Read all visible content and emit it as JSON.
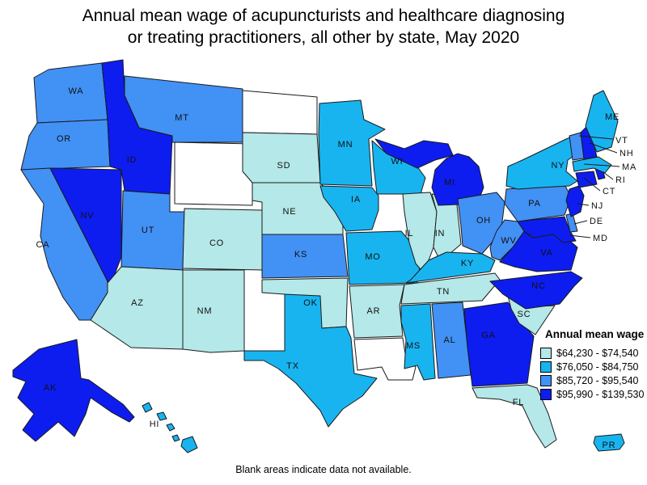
{
  "page": {
    "background": "#ffffff"
  },
  "title_lines": [
    "Annual mean wage of acupuncturists and healthcare diagnosing",
    "or treating practitioners, all other by state, May 2020"
  ],
  "footnote": "Blank areas indicate data not available.",
  "legend": {
    "title": "Annual mean wage",
    "classes": [
      {
        "label": "$64,230 - $74,540",
        "color": "#b5e8e8"
      },
      {
        "label": "$76,050 - $84,750",
        "color": "#18b4f0"
      },
      {
        "label": "$85,720 - $95,540",
        "color": "#4291f5"
      },
      {
        "label": "$95,990 - $139,530",
        "color": "#0d1df0"
      }
    ]
  },
  "map": {
    "no_data_color": "#ffffff",
    "border_color": "#1a1a1a",
    "label_color": "#111111",
    "states": [
      {
        "abbr": "WA",
        "wage_class": 2
      },
      {
        "abbr": "OR",
        "wage_class": 2
      },
      {
        "abbr": "CA",
        "wage_class": 2
      },
      {
        "abbr": "ID",
        "wage_class": 3
      },
      {
        "abbr": "NV",
        "wage_class": 3
      },
      {
        "abbr": "MT",
        "wage_class": 2
      },
      {
        "abbr": "WY",
        "wage_class": null,
        "label_shown": false
      },
      {
        "abbr": "UT",
        "wage_class": 2
      },
      {
        "abbr": "AZ",
        "wage_class": 0
      },
      {
        "abbr": "NM",
        "wage_class": 0
      },
      {
        "abbr": "CO",
        "wage_class": 0
      },
      {
        "abbr": "ND",
        "wage_class": null,
        "label_shown": false
      },
      {
        "abbr": "SD",
        "wage_class": 0
      },
      {
        "abbr": "NE",
        "wage_class": 0
      },
      {
        "abbr": "KS",
        "wage_class": 2
      },
      {
        "abbr": "OK",
        "wage_class": 0
      },
      {
        "abbr": "TX",
        "wage_class": 1
      },
      {
        "abbr": "MN",
        "wage_class": 1
      },
      {
        "abbr": "IA",
        "wage_class": 1
      },
      {
        "abbr": "MO",
        "wage_class": 1
      },
      {
        "abbr": "AR",
        "wage_class": 0
      },
      {
        "abbr": "LA",
        "wage_class": null,
        "label_shown": false
      },
      {
        "abbr": "WI",
        "wage_class": 1
      },
      {
        "abbr": "IL",
        "wage_class": 0
      },
      {
        "abbr": "IN",
        "wage_class": 0
      },
      {
        "abbr": "MI",
        "wage_class": 3
      },
      {
        "abbr": "OH",
        "wage_class": 2
      },
      {
        "abbr": "KY",
        "wage_class": 1
      },
      {
        "abbr": "TN",
        "wage_class": 0
      },
      {
        "abbr": "MS",
        "wage_class": 1
      },
      {
        "abbr": "AL",
        "wage_class": 2
      },
      {
        "abbr": "GA",
        "wage_class": 3
      },
      {
        "abbr": "FL",
        "wage_class": 0
      },
      {
        "abbr": "SC",
        "wage_class": 0
      },
      {
        "abbr": "NC",
        "wage_class": 3
      },
      {
        "abbr": "VA",
        "wage_class": 3
      },
      {
        "abbr": "WV",
        "wage_class": 2
      },
      {
        "abbr": "MD",
        "wage_class": 3
      },
      {
        "abbr": "DE",
        "wage_class": 2
      },
      {
        "abbr": "PA",
        "wage_class": 2
      },
      {
        "abbr": "NY",
        "wage_class": 1
      },
      {
        "abbr": "NJ",
        "wage_class": 3
      },
      {
        "abbr": "CT",
        "wage_class": 3
      },
      {
        "abbr": "RI",
        "wage_class": 3
      },
      {
        "abbr": "MA",
        "wage_class": 1
      },
      {
        "abbr": "VT",
        "wage_class": 2
      },
      {
        "abbr": "NH",
        "wage_class": 3
      },
      {
        "abbr": "ME",
        "wage_class": 1
      },
      {
        "abbr": "AK",
        "wage_class": 3
      },
      {
        "abbr": "HI",
        "wage_class": 1
      },
      {
        "abbr": "PR",
        "wage_class": 1
      }
    ]
  }
}
